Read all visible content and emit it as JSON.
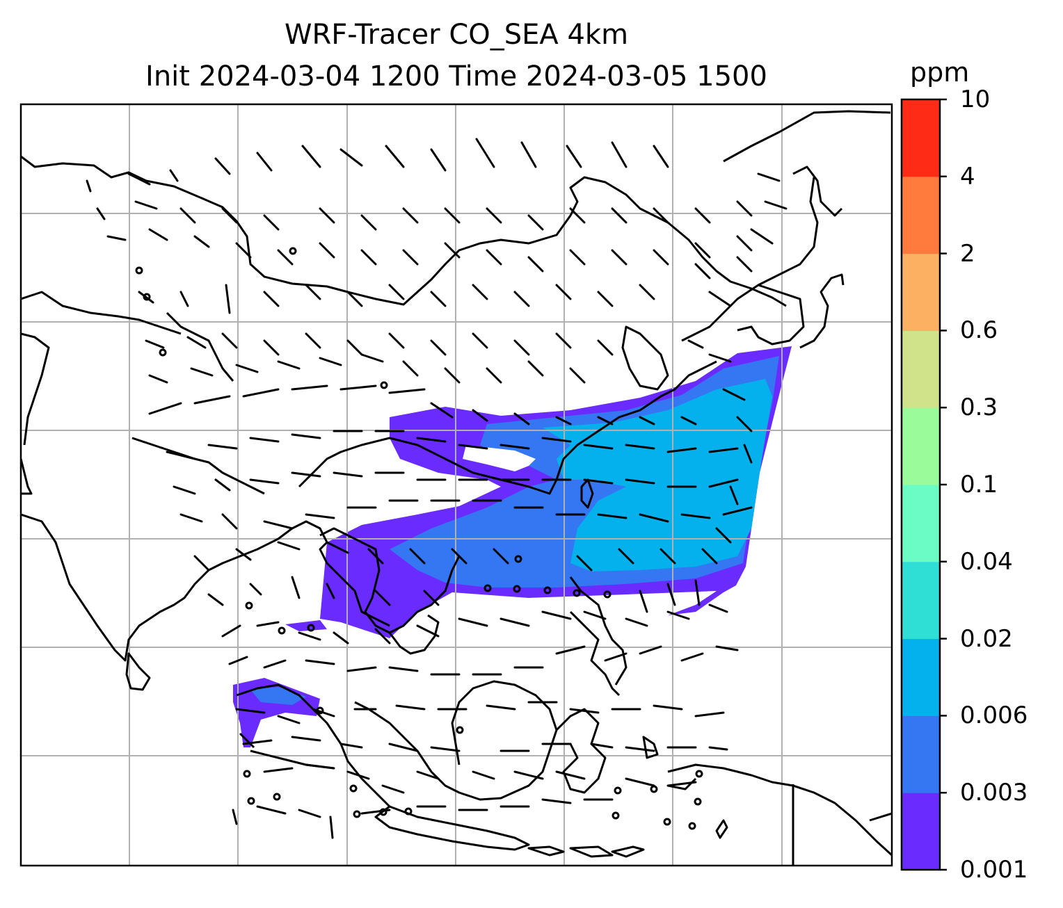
{
  "title": {
    "line1": "WRF-Tracer CO_SEA 4km",
    "line2": "Init 2024-03-04 1200 Time 2024-03-05 1500"
  },
  "colorbar": {
    "unit": "ppm",
    "levels": [
      "0.001",
      "0.003",
      "0.006",
      "0.02",
      "0.04",
      "0.1",
      "0.3",
      "0.6",
      "2",
      "4",
      "10"
    ],
    "colors": [
      "#6a2bff",
      "#3576f2",
      "#04b1ec",
      "#2fdfd6",
      "#6bfcc6",
      "#9afb9a",
      "#d0e28a",
      "#fcb062",
      "#ff7a3c",
      "#fe2c17"
    ]
  },
  "map": {
    "colors": {
      "coast": "#000000",
      "grid": "#b0b0b0",
      "barb": "#000000",
      "low_conc": "#6a2bff",
      "mid_conc": "#3576f2",
      "high_conc": "#04b1ec"
    }
  }
}
